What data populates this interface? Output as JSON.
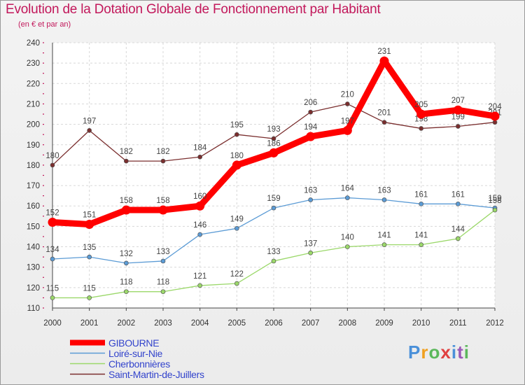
{
  "chart_data": {
    "type": "line",
    "title": "Evolution de la Dotation Globale de Fonctionnement par Habitant",
    "subtitle": "(en € et par an)",
    "xlabel": "",
    "ylabel": "",
    "ylim": [
      110,
      240
    ],
    "yticks": [
      110,
      120,
      130,
      140,
      150,
      160,
      170,
      180,
      190,
      200,
      210,
      220,
      230,
      240
    ],
    "x": [
      2000,
      2001,
      2002,
      2003,
      2004,
      2005,
      2006,
      2007,
      2008,
      2009,
      2010,
      2011,
      2012
    ],
    "grid": true,
    "legend_position": "bottom-left",
    "series": [
      {
        "name": "Saint-Martin-de-Juillers",
        "color": "#7a2e2e",
        "values": [
          180,
          197,
          182,
          182,
          184,
          195,
          193,
          206,
          210,
          201,
          198,
          199,
          201
        ]
      },
      {
        "name": "Loiré-sur-Nie",
        "color": "#5b9bd5",
        "values": [
          134,
          135,
          132,
          133,
          146,
          149,
          159,
          163,
          164,
          163,
          161,
          161,
          159
        ]
      },
      {
        "name": "Cherbonnières",
        "color": "#9bd86a",
        "values": [
          115,
          115,
          118,
          118,
          121,
          122,
          133,
          137,
          140,
          141,
          141,
          144,
          158
        ]
      },
      {
        "name": "GIBOURNE",
        "color": "#ff0000",
        "values": [
          152,
          151,
          158,
          158,
          160,
          180,
          186,
          194,
          197,
          231,
          205,
          207,
          204
        ]
      }
    ]
  },
  "legend": {
    "items": [
      {
        "label": "GIBOURNE",
        "color": "#ff0000"
      },
      {
        "label": "Loiré-sur-Nie",
        "color": "#5b9bd5"
      },
      {
        "label": "Cherbonnières",
        "color": "#9bd86a"
      },
      {
        "label": "Saint-Martin-de-Juillers",
        "color": "#7a2e2e"
      }
    ]
  },
  "brand": {
    "letters": [
      "P",
      "r",
      "o",
      "x",
      "i",
      "t",
      "i"
    ],
    "colors": [
      "#4a90d9",
      "#f0a020",
      "#5cb85c",
      "#e04040",
      "#4a90d9",
      "#9b59b6",
      "#5cb85c"
    ]
  }
}
